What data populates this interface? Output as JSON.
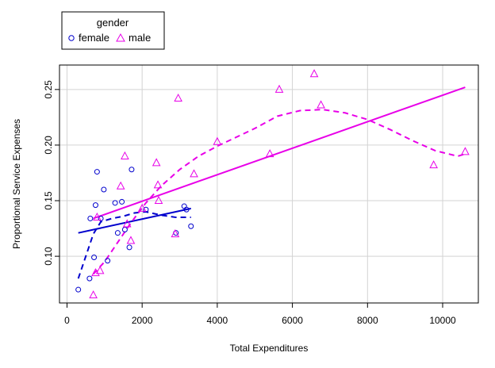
{
  "chart_data": {
    "type": "scatter",
    "xlabel": "Total Expenditures",
    "ylabel": "Proportional Service Expenses",
    "xlim": [
      -200,
      10950
    ],
    "ylim": [
      0.058,
      0.272
    ],
    "x_ticks": [
      0,
      2000,
      4000,
      6000,
      8000,
      10000
    ],
    "y_ticks": [
      0.1,
      0.15,
      0.2,
      0.25
    ],
    "x_tick_labels": [
      "0",
      "2000",
      "4000",
      "6000",
      "8000",
      "10000"
    ],
    "y_tick_labels": [
      "0.10",
      "0.15",
      "0.20",
      "0.25"
    ],
    "grid": true,
    "legend": {
      "title": "gender",
      "placement": "top-left, outside plot",
      "entries": [
        {
          "label": "female",
          "marker": "circle",
          "color": "#0000CD"
        },
        {
          "label": "male",
          "marker": "triangle",
          "color": "#E800E8"
        }
      ]
    },
    "series": [
      {
        "name": "female",
        "color": "#0000CD",
        "marker": "circle",
        "points": [
          [
            300,
            0.07
          ],
          [
            600,
            0.08
          ],
          [
            620,
            0.134
          ],
          [
            720,
            0.099
          ],
          [
            760,
            0.146
          ],
          [
            800,
            0.176
          ],
          [
            900,
            0.134
          ],
          [
            980,
            0.16
          ],
          [
            1080,
            0.096
          ],
          [
            1280,
            0.148
          ],
          [
            1350,
            0.121
          ],
          [
            1460,
            0.149
          ],
          [
            1540,
            0.124
          ],
          [
            1660,
            0.108
          ],
          [
            1720,
            0.178
          ],
          [
            2100,
            0.142
          ],
          [
            2900,
            0.121
          ],
          [
            3120,
            0.145
          ],
          [
            3180,
            0.142
          ],
          [
            3300,
            0.127
          ]
        ],
        "linear_fit": [
          [
            300,
            0.121
          ],
          [
            3300,
            0.143
          ]
        ],
        "smooth_fit": [
          [
            300,
            0.08
          ],
          [
            500,
            0.1
          ],
          [
            700,
            0.12
          ],
          [
            900,
            0.131
          ],
          [
            1200,
            0.134
          ],
          [
            1500,
            0.136
          ],
          [
            1800,
            0.139
          ],
          [
            2100,
            0.14
          ],
          [
            2500,
            0.137
          ],
          [
            2900,
            0.135
          ],
          [
            3300,
            0.135
          ]
        ]
      },
      {
        "name": "male",
        "color": "#E800E8",
        "marker": "triangle",
        "points": [
          [
            700,
            0.065
          ],
          [
            760,
            0.085
          ],
          [
            880,
            0.087
          ],
          [
            800,
            0.135
          ],
          [
            1430,
            0.163
          ],
          [
            1540,
            0.19
          ],
          [
            1600,
            0.129
          ],
          [
            1700,
            0.114
          ],
          [
            2000,
            0.143
          ],
          [
            2380,
            0.184
          ],
          [
            2420,
            0.164
          ],
          [
            2440,
            0.15
          ],
          [
            2880,
            0.12
          ],
          [
            2960,
            0.242
          ],
          [
            3380,
            0.174
          ],
          [
            4000,
            0.203
          ],
          [
            5400,
            0.192
          ],
          [
            5650,
            0.25
          ],
          [
            6580,
            0.264
          ],
          [
            6760,
            0.236
          ],
          [
            9760,
            0.182
          ],
          [
            10600,
            0.194
          ]
        ],
        "linear_fit": [
          [
            700,
            0.134
          ],
          [
            10600,
            0.252
          ]
        ],
        "smooth_fit": [
          [
            700,
            0.084
          ],
          [
            1000,
            0.095
          ],
          [
            1300,
            0.11
          ],
          [
            1700,
            0.13
          ],
          [
            2100,
            0.148
          ],
          [
            2500,
            0.163
          ],
          [
            3000,
            0.178
          ],
          [
            3500,
            0.19
          ],
          [
            4000,
            0.199
          ],
          [
            5000,
            0.215
          ],
          [
            5600,
            0.226
          ],
          [
            6200,
            0.231
          ],
          [
            6800,
            0.232
          ],
          [
            7400,
            0.229
          ],
          [
            8000,
            0.223
          ],
          [
            8600,
            0.214
          ],
          [
            9200,
            0.204
          ],
          [
            9800,
            0.195
          ],
          [
            10400,
            0.19
          ],
          [
            10600,
            0.192
          ]
        ]
      }
    ]
  }
}
